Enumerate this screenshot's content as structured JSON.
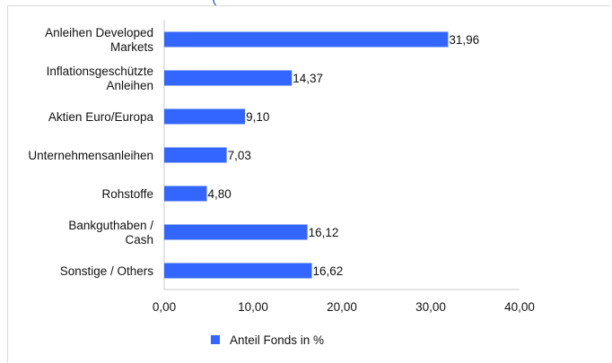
{
  "chart_data": {
    "type": "bar",
    "orientation": "horizontal",
    "title": "(",
    "categories": [
      [
        "Anleihen Developed",
        "Markets"
      ],
      [
        "Inflationsgeschützte",
        "Anleihen"
      ],
      [
        "Aktien Euro/Europa"
      ],
      [
        "Unternehmensanleihen"
      ],
      [
        "Rohstoffe"
      ],
      [
        "Bankguthaben /",
        "Cash"
      ],
      [
        "Sonstige / Others"
      ]
    ],
    "series": [
      {
        "name": "Anteil Fonds in %",
        "values": [
          31.96,
          14.37,
          9.1,
          7.03,
          4.8,
          16.12,
          16.62
        ],
        "value_labels": [
          "31,96",
          "14,37",
          "9,10",
          "7,03",
          "4,80",
          "16,12",
          "16,62"
        ],
        "color": "#3366ff"
      }
    ],
    "xlim": [
      0,
      40
    ],
    "xticks": [
      0,
      10,
      20,
      30,
      40
    ],
    "xtick_labels": [
      "0,00",
      "10,00",
      "20,00",
      "30,00",
      "40,00"
    ],
    "grid": false,
    "legend_position": "bottom"
  },
  "colors": {
    "bar": "#3366ff",
    "title": "#3b64c4",
    "axis": "#c8c8c8"
  }
}
